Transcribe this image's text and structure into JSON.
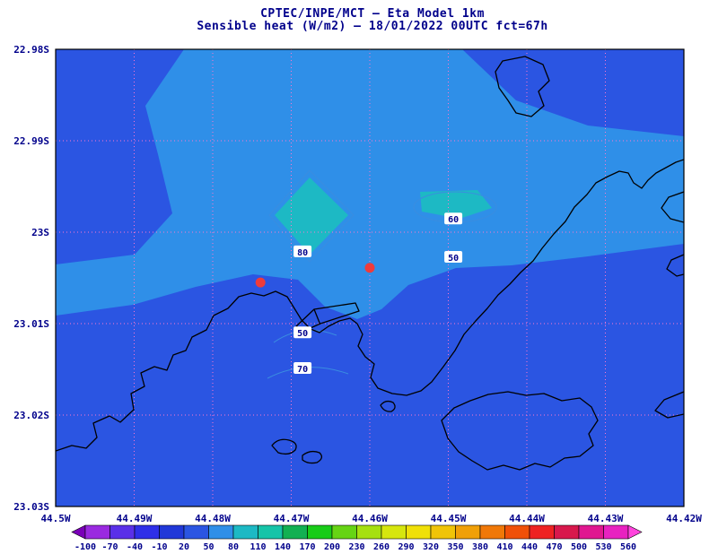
{
  "title": {
    "line1": "CPTEC/INPE/MCT —  Eta Model 1km",
    "line2": "Sensible heat (W/m2) — 18/01/2022 00UTC fct=67h"
  },
  "axes": {
    "lat_labels": [
      "22.98S",
      "22.99S",
      "23S",
      "23.01S",
      "23.02S",
      "23.03S"
    ],
    "lon_labels": [
      "44.5W",
      "44.49W",
      "44.48W",
      "44.47W",
      "44.46W",
      "44.45W",
      "44.44W",
      "44.43W",
      "44.42W"
    ]
  },
  "colorbar": {
    "values": [
      "-100",
      "-70",
      "-40",
      "-10",
      "20",
      "50",
      "80",
      "110",
      "140",
      "170",
      "200",
      "230",
      "260",
      "290",
      "320",
      "350",
      "380",
      "410",
      "440",
      "470",
      "500",
      "530",
      "560"
    ],
    "colors": [
      "#7a00b8",
      "#9a2ae0",
      "#5a30e8",
      "#2f2fe8",
      "#2138d8",
      "#2b55e2",
      "#2f8fe8",
      "#1db9c4",
      "#16c4a8",
      "#12b052",
      "#18cc18",
      "#66d414",
      "#a6e010",
      "#d6e60e",
      "#f0e008",
      "#f0c408",
      "#f0a008",
      "#f07808",
      "#f05008",
      "#ee2222",
      "#d8184c",
      "#e01890",
      "#e822c0",
      "#ff44dd"
    ]
  },
  "contour_labels": [
    {
      "value": "60",
      "fx": 0.633,
      "fy": 0.371
    },
    {
      "value": "80",
      "fx": 0.393,
      "fy": 0.443
    },
    {
      "value": "50",
      "fx": 0.633,
      "fy": 0.455
    },
    {
      "value": "50",
      "fx": 0.393,
      "fy": 0.62
    },
    {
      "value": "70",
      "fx": 0.393,
      "fy": 0.698
    }
  ],
  "stations": [
    {
      "fx": 0.326,
      "fy": 0.51
    },
    {
      "fx": 0.5,
      "fy": 0.478
    }
  ],
  "colors": {
    "title_text": "#00008b",
    "axis_text": "#00008b",
    "grid": "#ff77cc",
    "coastline": "#000000",
    "shade_20_50": "#2b55e2",
    "shade_50_80": "#2f8fe8",
    "shade_80_110": "#1db9c4",
    "contour_line": "#3a8de0",
    "station_dot": "#ef3b3b",
    "label_box_bg": "#ffffff"
  },
  "chart_data": {
    "type": "heatmap",
    "title": "CPTEC/INPE/MCT —  Eta Model 1km",
    "subtitle": "Sensible heat (W/m2) — 18/01/2022 00UTC fct=67h",
    "variable": "Sensible heat",
    "units": "W/m2",
    "valid_time": "18/01/2022 00UTC",
    "forecast": "fct=67h",
    "x_ticks": [
      "44.5W",
      "44.49W",
      "44.48W",
      "44.47W",
      "44.46W",
      "44.45W",
      "44.44W",
      "44.43W",
      "44.42W"
    ],
    "y_ticks": [
      "22.98S",
      "22.99S",
      "23S",
      "23.01S",
      "23.02S",
      "23.03S"
    ],
    "xlim": [
      "44.5W",
      "44.42W"
    ],
    "ylim": [
      "23.03S",
      "22.98S"
    ],
    "grid": true,
    "legend_position": "bottom-colorbar",
    "color_scale_values": [
      -100,
      -70,
      -40,
      -10,
      20,
      50,
      80,
      110,
      140,
      170,
      200,
      230,
      260,
      290,
      320,
      350,
      380,
      410,
      440,
      470,
      500,
      530,
      560
    ],
    "color_scale_colors": [
      "#7a00b8",
      "#9a2ae0",
      "#5a30e8",
      "#2f2fe8",
      "#2138d8",
      "#2b55e2",
      "#2f8fe8",
      "#1db9c4",
      "#16c4a8",
      "#12b052",
      "#18cc18",
      "#66d414",
      "#a6e010",
      "#d6e60e",
      "#f0e008",
      "#f0c408",
      "#f0a008",
      "#f07808",
      "#f05008",
      "#ee2222",
      "#d8184c",
      "#e01890",
      "#e822c0",
      "#ff44dd"
    ],
    "shaded_regions": [
      {
        "range": [
          20,
          50
        ],
        "color": "#2b55e2",
        "where": "most of the domain: south half, west side and top corners"
      },
      {
        "range": [
          50,
          80
        ],
        "color": "#2f8fe8",
        "where": "broad band across the upper middle reaching the right edge, with a tongue to the left edge near 23.005S"
      },
      {
        "range": [
          80,
          110
        ],
        "color": "#1db9c4",
        "where": "small diamond patch near 44.468W/23S and small patch near 44.45W/22.998S"
      }
    ],
    "contour_label_values": [
      60,
      80,
      50,
      50,
      70
    ],
    "markers": [
      {
        "type": "red-dot",
        "fx": 0.326,
        "fy": 0.51
      },
      {
        "type": "red-dot",
        "fx": 0.5,
        "fy": 0.478
      }
    ]
  }
}
